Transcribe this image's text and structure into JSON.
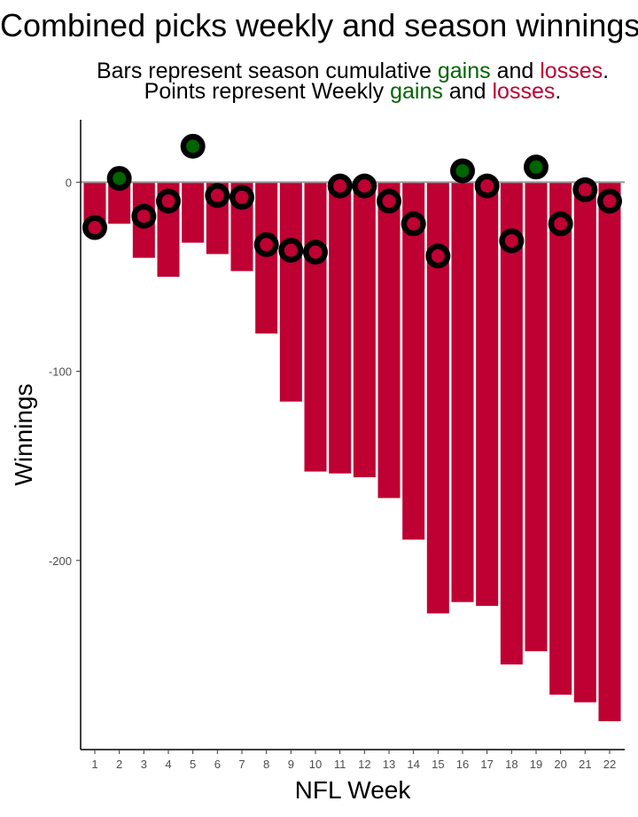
{
  "chart_data": {
    "type": "bar",
    "title": "Combined picks weekly and season winnings",
    "subtitle": {
      "line1": {
        "a": "Bars represent season cumulative ",
        "gains": "gains",
        "and": " and ",
        "losses": "losses",
        "end": "."
      },
      "line2": {
        "a": "Points represent Weekly ",
        "gains": "gains",
        "and": " and ",
        "losses": "losses",
        "end": "."
      }
    },
    "xlabel": "NFL Week",
    "ylabel": "Winnings",
    "categories": [
      "1",
      "2",
      "3",
      "4",
      "5",
      "6",
      "7",
      "8",
      "9",
      "10",
      "11",
      "12",
      "13",
      "14",
      "15",
      "16",
      "17",
      "18",
      "19",
      "20",
      "21",
      "22"
    ],
    "series": [
      {
        "name": "Season cumulative",
        "kind": "bar",
        "values": [
          -22,
          -22,
          -40,
          -50,
          -32,
          -38,
          -47,
          -80,
          -116,
          -153,
          -154,
          -156,
          -167,
          -189,
          -228,
          -222,
          -224,
          -255,
          -248,
          -271,
          -275,
          -285
        ]
      },
      {
        "name": "Weekly",
        "kind": "point",
        "values": [
          -24,
          2,
          -18,
          -10,
          19,
          -7,
          -8,
          -33,
          -36,
          -37,
          -2,
          -2,
          -10,
          -22,
          -39,
          6,
          -2,
          -31,
          8,
          -22,
          -4,
          -10
        ]
      }
    ],
    "yticks": [
      0,
      -100,
      -200
    ],
    "ytick_labels": [
      "0",
      "-100",
      "-200"
    ],
    "ylim": [
      -300,
      33
    ],
    "colors": {
      "gain": "#006400",
      "loss": "#BE0032",
      "zero_line": "#999999"
    }
  }
}
